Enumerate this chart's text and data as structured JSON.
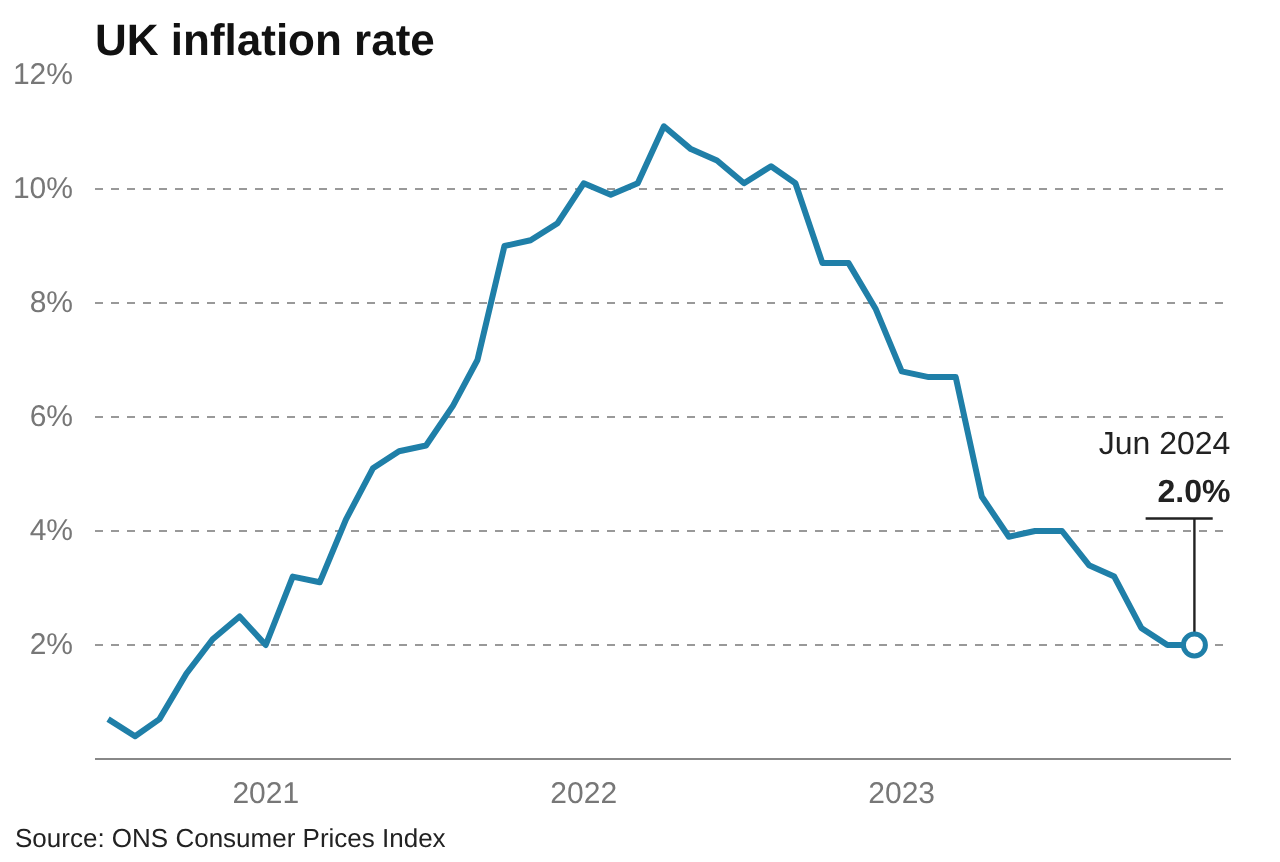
{
  "chart_data": {
    "type": "line",
    "title": "UK inflation rate",
    "x": [
      "2021-01",
      "2021-02",
      "2021-03",
      "2021-04",
      "2021-05",
      "2021-06",
      "2021-07",
      "2021-08",
      "2021-09",
      "2021-10",
      "2021-11",
      "2021-12",
      "2022-01",
      "2022-02",
      "2022-03",
      "2022-04",
      "2022-05",
      "2022-06",
      "2022-07",
      "2022-08",
      "2022-09",
      "2022-10",
      "2022-11",
      "2022-12",
      "2023-01",
      "2023-02",
      "2023-03",
      "2023-04",
      "2023-05",
      "2023-06",
      "2023-07",
      "2023-08",
      "2023-09",
      "2023-10",
      "2023-11",
      "2023-12",
      "2024-01",
      "2024-02",
      "2024-03",
      "2024-04",
      "2024-05",
      "2024-06"
    ],
    "series": [
      {
        "color": "#1f7fa8",
        "values": [
          0.7,
          0.4,
          0.7,
          1.5,
          2.1,
          2.5,
          2.0,
          3.2,
          3.1,
          4.2,
          5.1,
          5.4,
          5.5,
          6.2,
          7.0,
          9.0,
          9.1,
          9.4,
          10.1,
          9.9,
          10.1,
          11.1,
          10.7,
          10.5,
          10.1,
          10.4,
          10.1,
          8.7,
          8.7,
          7.9,
          6.8,
          6.7,
          6.7,
          4.6,
          3.9,
          4.0,
          4.0,
          3.4,
          3.2,
          2.3,
          2.0,
          2.0
        ]
      }
    ],
    "xlim": [
      "2020-12-17",
      "2024-07-13"
    ],
    "xticks": [
      {
        "value": "2021-07-01",
        "label": "2021"
      },
      {
        "value": "2022-07-01",
        "label": "2022"
      },
      {
        "value": "2023-07-01",
        "label": "2023"
      }
    ],
    "ylim": [
      0,
      12
    ],
    "yticks": [
      {
        "value": 0,
        "label": null
      },
      {
        "value": 2,
        "label": "2%"
      },
      {
        "value": 4,
        "label": "4%"
      },
      {
        "value": 6,
        "label": "6%"
      },
      {
        "value": 8,
        "label": "8%"
      },
      {
        "value": 10,
        "label": "10%"
      },
      {
        "value": 12,
        "label": "12%"
      }
    ],
    "grid": "y",
    "marker": "none",
    "line_style": "solid",
    "annotations": [
      "Jun 2024",
      {
        "text": "2.0%",
        "x": "2024-06",
        "y": 2.0
      },
      "Source: ONS Consumer Prices Index"
    ]
  }
}
